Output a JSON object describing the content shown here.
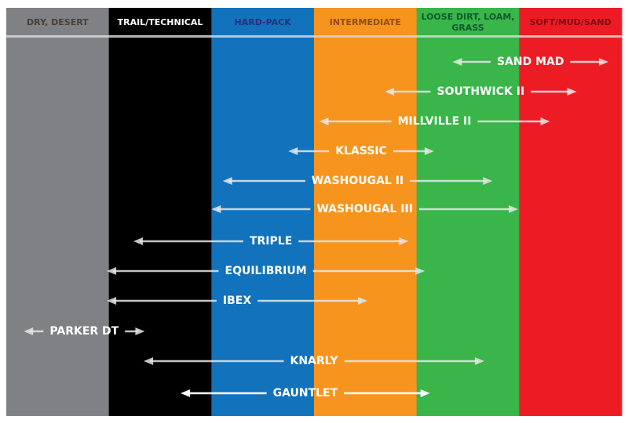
{
  "chart_data": {
    "type": "range",
    "columns": [
      {
        "label": "DRY, DESERT",
        "color": "#808184",
        "text_color": "#4a3e3a"
      },
      {
        "label": "TRAIL/TECHNICAL",
        "color": "#000000",
        "text_color": "#ffffff"
      },
      {
        "label": "HARD-PACK",
        "color": "#1272bb",
        "text_color": "#27307a"
      },
      {
        "label": "INTERMEDIATE",
        "color": "#f7941e",
        "text_color": "#8a4f0f"
      },
      {
        "label": [
          "LOOSE DIRT, LOAM,",
          "GRASS"
        ],
        "color": "#39b54a",
        "text_color": "#0d5a2a"
      },
      {
        "label": "SOFT/MUD/SAND",
        "color": "#ed1c24",
        "text_color": "#7a0d12"
      }
    ],
    "scale_note_units": "terrain columns 0-6",
    "ranges": [
      {
        "name": "SAND MAD",
        "from": 4.35,
        "to": 5.87
      },
      {
        "name": "SOUTHWICK II",
        "from": 3.69,
        "to": 5.56
      },
      {
        "name": "MILLVILLE II",
        "from": 3.05,
        "to": 5.3
      },
      {
        "name": "KLASSIC",
        "from": 2.75,
        "to": 4.17
      },
      {
        "name": "WASHOUGAL II",
        "from": 2.11,
        "to": 4.74
      },
      {
        "name": "WASHOUGAL III",
        "from": 2.0,
        "to": 4.99
      },
      {
        "name": "TRIPLE",
        "from": 1.24,
        "to": 3.92
      },
      {
        "name": "EQUILIBRIUM",
        "from": 0.98,
        "to": 4.08
      },
      {
        "name": "IBEX",
        "from": 0.98,
        "to": 3.52
      },
      {
        "name": "PARKER DT",
        "from": 0.17,
        "to": 1.35
      },
      {
        "name": "KNARLY",
        "from": 1.34,
        "to": 4.66
      },
      {
        "name": "GAUNTLET",
        "from": 1.7,
        "to": 4.13,
        "highlight": true
      }
    ],
    "arrow_color": "#e6e6e6"
  }
}
